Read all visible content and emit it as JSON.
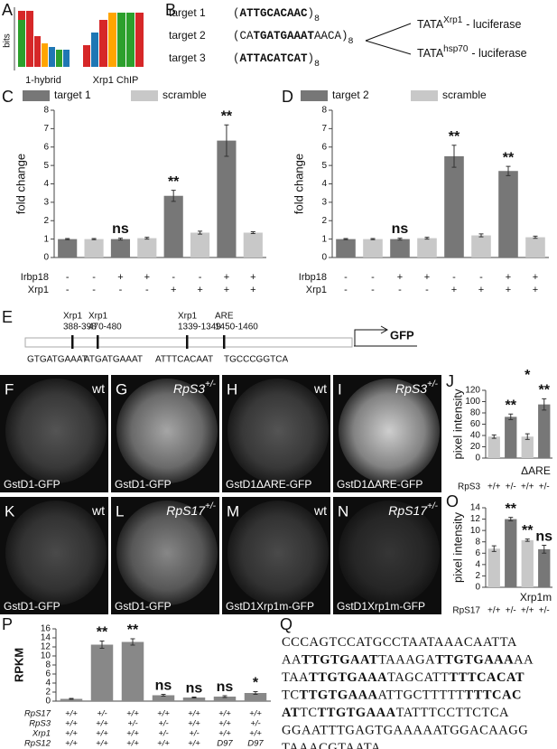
{
  "panel_labels": [
    "A",
    "B",
    "C",
    "D",
    "E",
    "J",
    "O",
    "P",
    "Q"
  ],
  "logos": {
    "ylabel": "bits",
    "captions": [
      "1-hybrid",
      "Xrp1 ChIP"
    ]
  },
  "constructs": {
    "targets": [
      {
        "name": "target 1",
        "parts": [
          {
            "text": "(",
            "bold": false
          },
          {
            "text": "ATTGCACAAC",
            "bold": true
          },
          {
            "text": ")",
            "bold": false
          }
        ],
        "sub": "8"
      },
      {
        "name": "target 2",
        "parts": [
          {
            "text": "(CA",
            "bold": false
          },
          {
            "text": "TGATGAAAT",
            "bold": true
          },
          {
            "text": "AACA)",
            "bold": false
          }
        ],
        "sub": "8"
      },
      {
        "name": "target 3",
        "parts": [
          {
            "text": "(",
            "bold": false
          },
          {
            "text": "ATTACATCAT",
            "bold": true
          },
          {
            "text": ")",
            "bold": false
          }
        ],
        "sub": "8"
      }
    ],
    "reporters": [
      {
        "text": "TATA",
        "sup": "Xrp1",
        "suffix": "- luciferase"
      },
      {
        "text": "TATA",
        "sup": "hsp70",
        "suffix": "- luciferase"
      }
    ]
  },
  "promoter": {
    "sites": [
      {
        "name": "Xrp1",
        "range": "388-398",
        "seq": "GTGATGAAAT"
      },
      {
        "name": "Xrp1",
        "range": "470-480",
        "seq": "ATGATGAAAT"
      },
      {
        "name": "Xrp1",
        "range": "1339-1349",
        "seq": "ATTTCACAAT"
      },
      {
        "name": "ARE",
        "range": "1450-1460",
        "seq": "TGCCCGGTCA"
      }
    ],
    "gene": "GFP"
  },
  "images": [
    {
      "letter": "F",
      "genotype": {
        "text": "wt"
      },
      "caption": "GstD1-GFP"
    },
    {
      "letter": "G",
      "genotype": {
        "text": "RpS3",
        "sup": "+/-"
      },
      "caption": "GstD1-GFP"
    },
    {
      "letter": "H",
      "genotype": {
        "text": "wt"
      },
      "caption": "GstD1ΔARE-GFP"
    },
    {
      "letter": "I",
      "genotype": {
        "text": "RpS3",
        "sup": "+/-"
      },
      "caption": "GstD1ΔARE-GFP"
    },
    {
      "letter": "K",
      "genotype": {
        "text": "wt"
      },
      "caption": "GstD1-GFP"
    },
    {
      "letter": "L",
      "genotype": {
        "text": "RpS17",
        "sup": "+/-"
      },
      "caption": "GstD1-GFP"
    },
    {
      "letter": "M",
      "genotype": {
        "text": "wt"
      },
      "caption": "GstD1Xrp1m-GFP"
    },
    {
      "letter": "N",
      "genotype": {
        "text": "RpS17",
        "sup": "+/-"
      },
      "caption": "GstD1Xrp1m-GFP"
    }
  ],
  "chart_data": [
    {
      "type": "bar",
      "ylabel": "fold change",
      "ylim": [
        0,
        8
      ],
      "yticks": [
        0,
        1,
        2,
        3,
        4,
        5,
        6,
        7,
        8
      ],
      "series": [
        {
          "name": "target 1",
          "color": "#777777",
          "values": [
            1,
            1,
            3.35,
            6.35
          ],
          "errors": [
            0.03,
            0.05,
            0.3,
            0.85
          ]
        },
        {
          "name": "scramble",
          "color": "#c8c8c8",
          "values": [
            1,
            1.05,
            1.35,
            1.35
          ],
          "errors": [
            0.03,
            0.05,
            0.08,
            0.05
          ]
        }
      ],
      "annotations": [
        null,
        "ns",
        "**",
        "**"
      ],
      "rows": [
        {
          "name": "Irbp18",
          "labels": [
            "-",
            "-",
            "+",
            "+",
            "-",
            "-",
            "+",
            "+"
          ]
        },
        {
          "name": "Xrp1",
          "labels": [
            "-",
            "-",
            "-",
            "-",
            "+",
            "+",
            "+",
            "+"
          ]
        }
      ]
    },
    {
      "type": "bar",
      "ylabel": "fold change",
      "ylim": [
        0,
        8
      ],
      "yticks": [
        0,
        1,
        2,
        3,
        4,
        5,
        6,
        7,
        8
      ],
      "series": [
        {
          "name": "target 2",
          "color": "#777777",
          "values": [
            1,
            1,
            5.5,
            4.7
          ],
          "errors": [
            0.03,
            0.05,
            0.6,
            0.25
          ]
        },
        {
          "name": "scramble",
          "color": "#c8c8c8",
          "values": [
            1,
            1.05,
            1.2,
            1.1
          ],
          "errors": [
            0.03,
            0.05,
            0.08,
            0.06
          ]
        }
      ],
      "annotations": [
        null,
        "ns",
        "**",
        "**"
      ],
      "rows": [
        {
          "name": "Irbp18",
          "labels": [
            "-",
            "-",
            "+",
            "+",
            "-",
            "-",
            "+",
            "+"
          ]
        },
        {
          "name": "Xrp1",
          "labels": [
            "-",
            "-",
            "-",
            "-",
            "+",
            "+",
            "+",
            "+"
          ]
        }
      ]
    },
    {
      "type": "bar",
      "ylabel": "pixel intensity",
      "ylim": [
        0,
        120
      ],
      "yticks": [
        0,
        20,
        40,
        60,
        80,
        100,
        120
      ],
      "series": [
        {
          "colors": [
            "#c8c8c8",
            "#777777",
            "#c8c8c8",
            "#777777"
          ],
          "values": [
            38,
            73,
            38,
            95
          ],
          "errors": [
            3,
            5,
            5,
            10
          ]
        }
      ],
      "annotations": [
        null,
        "**",
        null,
        "**"
      ],
      "bracket_annotation": "*",
      "group_label": "ΔARE",
      "rows": [
        {
          "name": "RpS3",
          "labels": [
            "+/+",
            "+/-",
            "+/+",
            "+/-"
          ]
        }
      ]
    },
    {
      "type": "bar",
      "ylabel": "pixel intensity",
      "ylim": [
        0,
        14
      ],
      "yticks": [
        0,
        2,
        4,
        6,
        8,
        10,
        12,
        14
      ],
      "series": [
        {
          "colors": [
            "#c8c8c8",
            "#777777",
            "#c8c8c8",
            "#777777"
          ],
          "values": [
            6.8,
            12,
            8.3,
            6.7
          ],
          "errors": [
            0.5,
            0.3,
            0.2,
            0.7
          ]
        }
      ],
      "annotations": [
        null,
        "**",
        "**",
        "ns"
      ],
      "group_label": "Xrp1m",
      "rows": [
        {
          "name": "RpS17",
          "labels": [
            "+/+",
            "+/-",
            "+/+",
            "+/-"
          ]
        }
      ]
    },
    {
      "type": "bar",
      "ylabel": "RPKM",
      "ylim": [
        0,
        16
      ],
      "yticks": [
        0,
        2,
        4,
        6,
        8,
        10,
        12,
        14,
        16
      ],
      "series": [
        {
          "color": "#888888",
          "values": [
            0.5,
            12.5,
            13.1,
            1.3,
            0.8,
            1.0,
            1.8
          ],
          "errors": [
            0.1,
            0.8,
            0.7,
            0.2,
            0.1,
            0.2,
            0.3
          ]
        }
      ],
      "annotations": [
        null,
        "**",
        "**",
        "ns",
        "ns",
        "ns",
        "*"
      ],
      "rows": [
        {
          "name": "RpS17",
          "labels": [
            "+/+",
            "+/-",
            "+/+",
            "+/+",
            "+/+",
            "+/+",
            "+/+"
          ]
        },
        {
          "name": "RpS3",
          "labels": [
            "+/+",
            "+/+",
            "+/-",
            "+/-",
            "+/+",
            "+/+",
            "+/-"
          ]
        },
        {
          "name": "Xrp1",
          "labels": [
            "+/+",
            "+/+",
            "+/+",
            "+/-",
            "+/-",
            "+/+",
            "+/+"
          ]
        },
        {
          "name": "RpS12",
          "labels": [
            "+/+",
            "+/+",
            "+/+",
            "+/+",
            "+/+",
            "D97",
            "D97"
          ]
        }
      ]
    }
  ],
  "sequence": {
    "lines": [
      [
        {
          "text": "CCCAGTCCATGCCTAATAAACAATTA",
          "bold": false
        }
      ],
      [
        {
          "text": "AA",
          "bold": false
        },
        {
          "text": "TTGTGAAT",
          "bold": true
        },
        {
          "text": "TAAAGA",
          "bold": false
        },
        {
          "text": "TTGTGAAA",
          "bold": true
        },
        {
          "text": "AA",
          "bold": false
        }
      ],
      [
        {
          "text": "TAA",
          "bold": false
        },
        {
          "text": "TTGTGAAA",
          "bold": true
        },
        {
          "text": "TAGCATT",
          "bold": false
        },
        {
          "text": "TTTCACAT",
          "bold": true
        }
      ],
      [
        {
          "text": "TC",
          "bold": false
        },
        {
          "text": "TTGTGAAA",
          "bold": true
        },
        {
          "text": "ATTGCTTTTT",
          "bold": false
        },
        {
          "text": "TTTCAC",
          "bold": true
        }
      ],
      [
        {
          "text": "AT",
          "bold": true
        },
        {
          "text": "TC",
          "bold": false
        },
        {
          "text": "TTGTGAAA",
          "bold": true
        },
        {
          "text": "TATTTCCTTCTCA",
          "bold": false
        }
      ],
      [
        {
          "text": "GGAATTTGAGTGAAAAATGGACAAGG",
          "bold": false
        }
      ],
      [
        {
          "text": "TAAACGTAATA",
          "bold": false
        }
      ]
    ]
  }
}
